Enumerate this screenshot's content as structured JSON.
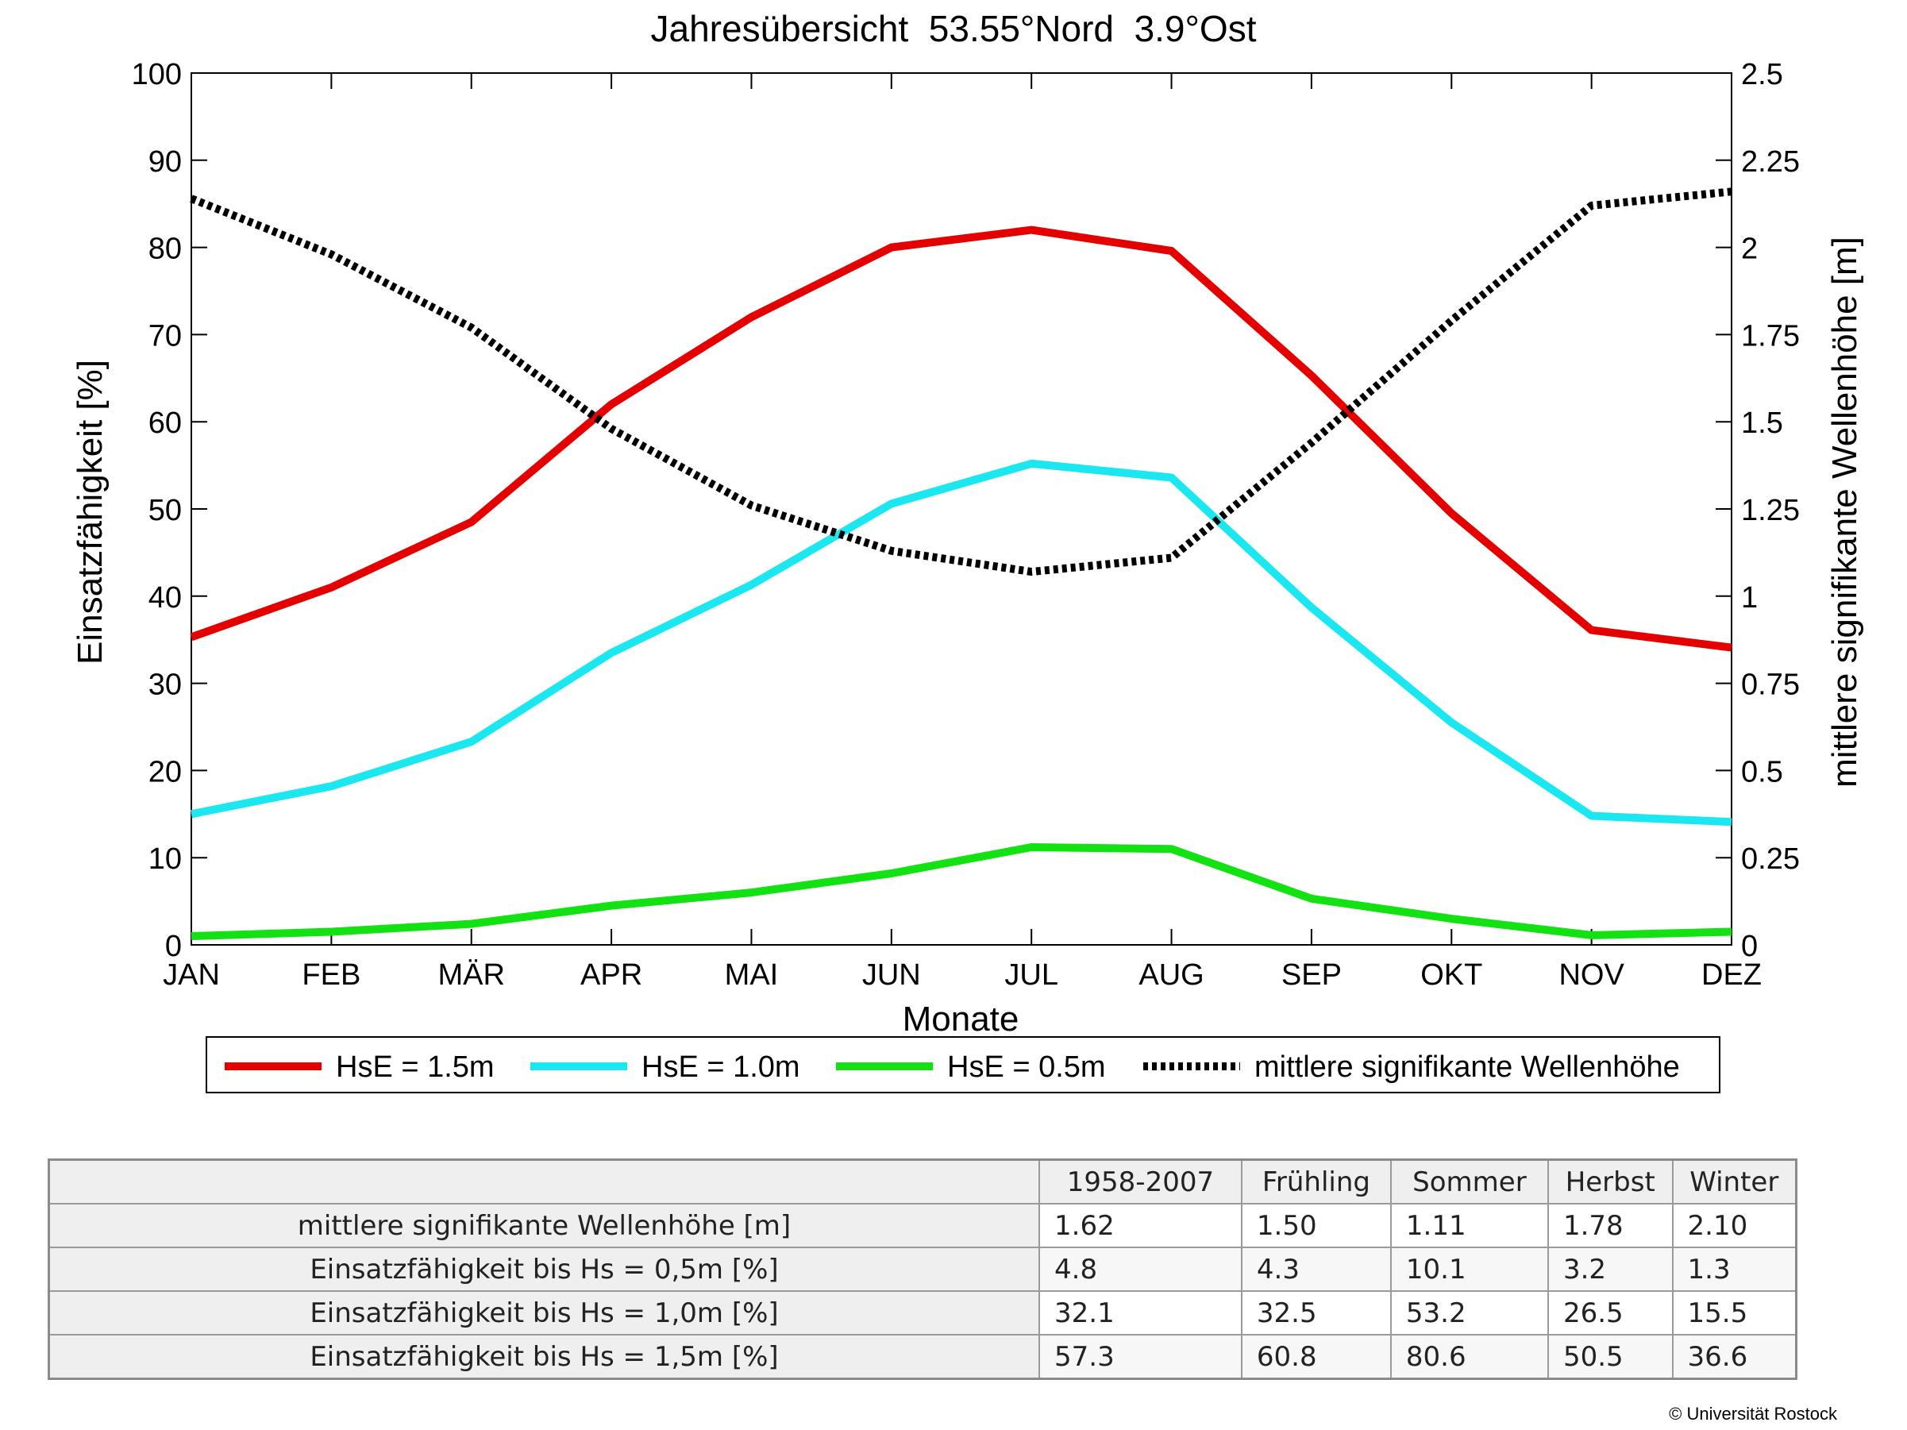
{
  "chart_data": {
    "type": "line",
    "title": "Jahresübersicht  53.55°Nord  3.9°Ost",
    "xlabel": "Monate",
    "ylabel": "Einsatzfähigkeit [%]",
    "y2label": "mittlere signifikante Wellenhöhe [m]",
    "categories": [
      "JAN",
      "FEB",
      "MÄR",
      "APR",
      "MAI",
      "JUN",
      "JUL",
      "AUG",
      "SEP",
      "OKT",
      "NOV",
      "DEZ"
    ],
    "ylim": [
      0,
      100
    ],
    "yticks": [
      "0",
      "10",
      "20",
      "30",
      "40",
      "50",
      "60",
      "70",
      "80",
      "90",
      "100"
    ],
    "y2lim": [
      0,
      2.5
    ],
    "y2ticks": [
      "0",
      "0.25",
      "0.5",
      "0.75",
      "1",
      "1.25",
      "1.5",
      "1.75",
      "2",
      "2.25",
      "2.5"
    ],
    "grid": false,
    "legend_position": "bottom",
    "series": [
      {
        "name": "HsE = 1.5m",
        "axis": "left",
        "color": "#e50000",
        "style": "solid",
        "values": [
          35.3,
          41.0,
          48.5,
          62.0,
          72.0,
          80.0,
          82.0,
          79.6,
          65.3,
          49.5,
          36.1,
          34.1
        ]
      },
      {
        "name": "HsE = 1.0m",
        "axis": "left",
        "color": "#1be7f0",
        "style": "solid",
        "values": [
          15.0,
          18.2,
          23.3,
          33.5,
          41.3,
          50.6,
          55.2,
          53.6,
          38.7,
          25.5,
          14.8,
          14.1
        ]
      },
      {
        "name": "HsE = 0.5m",
        "axis": "left",
        "color": "#12e212",
        "style": "solid",
        "values": [
          1.0,
          1.5,
          2.4,
          4.5,
          6.0,
          8.2,
          11.2,
          11.0,
          5.3,
          3.0,
          1.1,
          1.5
        ]
      },
      {
        "name": "mittlere signifikante Wellenhöhe",
        "axis": "right",
        "color": "#000000",
        "style": "dotted",
        "values": [
          2.14,
          1.98,
          1.77,
          1.48,
          1.26,
          1.13,
          1.07,
          1.11,
          1.44,
          1.79,
          2.12,
          2.16
        ]
      }
    ]
  },
  "table": {
    "headers": [
      "",
      "1958-2007",
      "Frühling",
      "Sommer",
      "Herbst",
      "Winter"
    ],
    "rows": [
      {
        "label": "mittlere signifikante Wellenhöhe [m]",
        "values": [
          "1.62",
          "1.50",
          "1.11",
          "1.78",
          "2.10"
        ]
      },
      {
        "label": "Einsatzfähigkeit bis Hs = 0,5m [%]",
        "values": [
          "4.8",
          "4.3",
          "10.1",
          "3.2",
          "1.3"
        ]
      },
      {
        "label": "Einsatzfähigkeit bis Hs = 1,0m [%]",
        "values": [
          "32.1",
          "32.5",
          "53.2",
          "26.5",
          "15.5"
        ]
      },
      {
        "label": "Einsatzfähigkeit bis Hs = 1,5m [%]",
        "values": [
          "57.3",
          "60.8",
          "80.6",
          "50.5",
          "36.6"
        ]
      }
    ]
  },
  "footer": {
    "copyright": "© Universität Rostock"
  }
}
